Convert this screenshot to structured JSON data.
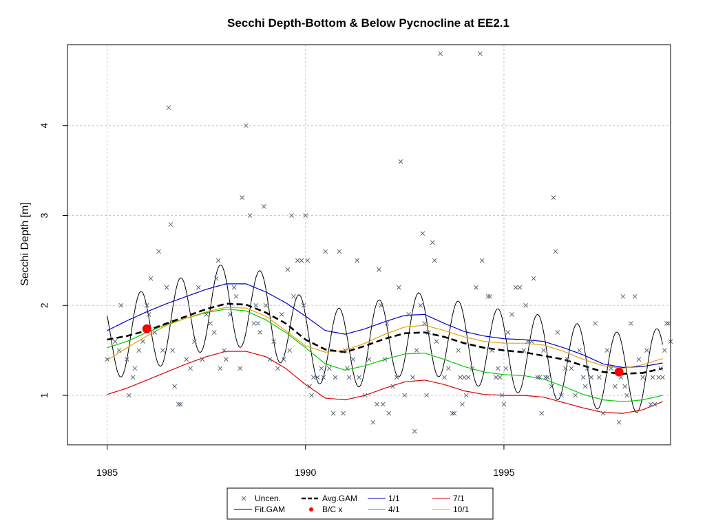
{
  "chart_data": {
    "type": "scatter",
    "title": "Secchi Depth-Bottom & Below Pycnocline at EE2.1",
    "xlabel": "",
    "ylabel": "Secchi Depth [m]",
    "xlim": [
      1984.0,
      1999.2
    ],
    "ylim": [
      0.45,
      4.9
    ],
    "x_ticks": [
      1985,
      1990,
      1995
    ],
    "y_ticks": [
      1,
      2,
      3,
      4
    ],
    "grid": true,
    "legend_position": "bottom",
    "legend": [
      {
        "label": "Uncen.",
        "symbol": "x",
        "color": "#556677"
      },
      {
        "label": "Fit.GAM",
        "symbol": "line",
        "color": "#000000"
      },
      {
        "label": "Avg.GAM",
        "symbol": "dashed",
        "color": "#000000"
      },
      {
        "label": "B/C x",
        "symbol": "dot",
        "color": "#ff0000"
      },
      {
        "label": "1/1",
        "symbol": "line",
        "color": "#0000cc"
      },
      {
        "label": "4/1",
        "symbol": "line",
        "color": "#00cc00"
      },
      {
        "label": "7/1",
        "symbol": "line",
        "color": "#dd0000"
      },
      {
        "label": "10/1",
        "symbol": "line",
        "color": "#e8a000"
      }
    ],
    "uncensored_points": [
      [
        1985.0,
        1.4
      ],
      [
        1985.2,
        1.6
      ],
      [
        1985.3,
        1.5
      ],
      [
        1985.35,
        2.0
      ],
      [
        1985.5,
        1.4
      ],
      [
        1985.55,
        1.0
      ],
      [
        1985.65,
        1.2
      ],
      [
        1985.7,
        1.3
      ],
      [
        1985.8,
        1.5
      ],
      [
        1985.9,
        1.6
      ],
      [
        1986.0,
        2.0
      ],
      [
        1986.05,
        1.9
      ],
      [
        1986.1,
        2.3
      ],
      [
        1986.2,
        1.7
      ],
      [
        1986.3,
        2.6
      ],
      [
        1986.4,
        1.5
      ],
      [
        1986.5,
        2.2
      ],
      [
        1986.55,
        4.2
      ],
      [
        1986.6,
        2.9
      ],
      [
        1986.65,
        1.5
      ],
      [
        1986.7,
        1.1
      ],
      [
        1986.8,
        0.9
      ],
      [
        1986.85,
        0.9
      ],
      [
        1987.0,
        1.4
      ],
      [
        1987.1,
        1.3
      ],
      [
        1987.2,
        1.6
      ],
      [
        1987.3,
        2.2
      ],
      [
        1987.4,
        1.4
      ],
      [
        1987.5,
        1.9
      ],
      [
        1987.6,
        1.8
      ],
      [
        1987.7,
        1.7
      ],
      [
        1987.75,
        2.3
      ],
      [
        1987.8,
        2.5
      ],
      [
        1987.85,
        1.3
      ],
      [
        1987.95,
        1.5
      ],
      [
        1988.0,
        1.4
      ],
      [
        1988.1,
        1.9
      ],
      [
        1988.2,
        2.2
      ],
      [
        1988.25,
        2.1
      ],
      [
        1988.35,
        1.3
      ],
      [
        1988.4,
        3.2
      ],
      [
        1988.5,
        4.0
      ],
      [
        1988.6,
        3.0
      ],
      [
        1988.7,
        1.8
      ],
      [
        1988.75,
        2.0
      ],
      [
        1988.8,
        1.8
      ],
      [
        1988.85,
        1.7
      ],
      [
        1988.95,
        3.1
      ],
      [
        1989.0,
        2.0
      ],
      [
        1989.1,
        1.4
      ],
      [
        1989.2,
        1.6
      ],
      [
        1989.3,
        1.3
      ],
      [
        1989.4,
        1.9
      ],
      [
        1989.45,
        1.4
      ],
      [
        1989.55,
        2.4
      ],
      [
        1989.6,
        1.5
      ],
      [
        1989.65,
        3.0
      ],
      [
        1989.7,
        2.1
      ],
      [
        1989.8,
        2.5
      ],
      [
        1989.9,
        2.5
      ],
      [
        1989.95,
        2.0
      ],
      [
        1990.0,
        3.0
      ],
      [
        1990.05,
        2.5
      ],
      [
        1990.1,
        1.1
      ],
      [
        1990.15,
        1.0
      ],
      [
        1990.2,
        1.2
      ],
      [
        1990.3,
        1.2
      ],
      [
        1990.4,
        1.3
      ],
      [
        1990.45,
        1.2
      ],
      [
        1990.5,
        2.6
      ],
      [
        1990.6,
        1.3
      ],
      [
        1990.7,
        0.8
      ],
      [
        1990.75,
        1.2
      ],
      [
        1990.85,
        2.6
      ],
      [
        1990.95,
        0.8
      ],
      [
        1991.0,
        1.5
      ],
      [
        1991.05,
        1.3
      ],
      [
        1991.1,
        1.2
      ],
      [
        1991.2,
        1.4
      ],
      [
        1991.3,
        2.5
      ],
      [
        1991.35,
        1.2
      ],
      [
        1991.5,
        1.0
      ],
      [
        1991.6,
        1.4
      ],
      [
        1991.7,
        0.7
      ],
      [
        1991.8,
        0.9
      ],
      [
        1991.85,
        2.4
      ],
      [
        1991.9,
        2.0
      ],
      [
        1991.95,
        0.9
      ],
      [
        1992.0,
        1.4
      ],
      [
        1992.05,
        1.8
      ],
      [
        1992.1,
        0.8
      ],
      [
        1992.2,
        1.1
      ],
      [
        1992.3,
        1.2
      ],
      [
        1992.35,
        2.2
      ],
      [
        1992.4,
        3.6
      ],
      [
        1992.5,
        1.0
      ],
      [
        1992.6,
        1.9
      ],
      [
        1992.7,
        1.2
      ],
      [
        1992.75,
        0.6
      ],
      [
        1992.8,
        1.5
      ],
      [
        1992.9,
        2.0
      ],
      [
        1992.95,
        2.8
      ],
      [
        1993.0,
        1.8
      ],
      [
        1993.05,
        1.0
      ],
      [
        1993.1,
        1.7
      ],
      [
        1993.2,
        2.7
      ],
      [
        1993.25,
        2.5
      ],
      [
        1993.3,
        1.6
      ],
      [
        1993.4,
        4.8
      ],
      [
        1993.5,
        1.2
      ],
      [
        1993.6,
        1.3
      ],
      [
        1993.7,
        0.8
      ],
      [
        1993.75,
        0.8
      ],
      [
        1993.85,
        1.5
      ],
      [
        1993.9,
        1.2
      ],
      [
        1993.95,
        0.9
      ],
      [
        1994.0,
        1.2
      ],
      [
        1994.05,
        1.0
      ],
      [
        1994.1,
        1.2
      ],
      [
        1994.2,
        1.3
      ],
      [
        1994.3,
        2.2
      ],
      [
        1994.4,
        4.8
      ],
      [
        1994.45,
        2.5
      ],
      [
        1994.6,
        2.1
      ],
      [
        1994.65,
        2.1
      ],
      [
        1994.7,
        1.5
      ],
      [
        1994.8,
        1.2
      ],
      [
        1994.85,
        1.3
      ],
      [
        1994.9,
        1.2
      ],
      [
        1994.95,
        1.0
      ],
      [
        1995.0,
        0.9
      ],
      [
        1995.05,
        1.3
      ],
      [
        1995.1,
        1.7
      ],
      [
        1995.2,
        1.9
      ],
      [
        1995.3,
        2.2
      ],
      [
        1995.4,
        2.2
      ],
      [
        1995.5,
        1.5
      ],
      [
        1995.55,
        2.0
      ],
      [
        1995.6,
        1.6
      ],
      [
        1995.7,
        1.6
      ],
      [
        1995.75,
        2.3
      ],
      [
        1995.85,
        1.2
      ],
      [
        1995.9,
        1.2
      ],
      [
        1995.95,
        0.8
      ],
      [
        1996.0,
        1.5
      ],
      [
        1996.05,
        1.2
      ],
      [
        1996.1,
        1.2
      ],
      [
        1996.2,
        1.1
      ],
      [
        1996.25,
        3.2
      ],
      [
        1996.3,
        2.6
      ],
      [
        1996.35,
        1.7
      ],
      [
        1996.45,
        1.0
      ],
      [
        1996.55,
        1.3
      ],
      [
        1996.6,
        1.4
      ],
      [
        1996.7,
        1.3
      ],
      [
        1996.8,
        1.0
      ],
      [
        1996.9,
        1.5
      ],
      [
        1997.0,
        1.2
      ],
      [
        1997.05,
        1.1
      ],
      [
        1997.1,
        1.3
      ],
      [
        1997.2,
        1.2
      ],
      [
        1997.3,
        1.8
      ],
      [
        1997.4,
        1.2
      ],
      [
        1997.5,
        0.8
      ],
      [
        1997.6,
        1.5
      ],
      [
        1997.7,
        1.3
      ],
      [
        1997.8,
        1.1
      ],
      [
        1997.9,
        0.7
      ],
      [
        1997.95,
        1.2
      ],
      [
        1998.0,
        2.1
      ],
      [
        1998.05,
        1.1
      ],
      [
        1998.1,
        1.0
      ],
      [
        1998.2,
        1.8
      ],
      [
        1998.3,
        2.1
      ],
      [
        1998.4,
        1.4
      ],
      [
        1998.5,
        1.2
      ],
      [
        1998.6,
        1.5
      ],
      [
        1998.7,
        0.9
      ],
      [
        1998.75,
        1.2
      ],
      [
        1998.8,
        0.9
      ],
      [
        1998.9,
        1.2
      ],
      [
        1998.95,
        1.3
      ],
      [
        1999.0,
        1.2
      ],
      [
        1999.05,
        1.5
      ],
      [
        1999.1,
        1.8
      ],
      [
        1999.15,
        1.8
      ],
      [
        1999.2,
        1.6
      ]
    ],
    "bc_points": [
      [
        1986.0,
        1.74
      ],
      [
        1997.9,
        1.26
      ]
    ],
    "fit_gam": {
      "seasonal_amplitude": 0.45,
      "seasonal_peak_fraction": 0.85,
      "mean": [
        [
          1985.0,
          1.62
        ],
        [
          1986.0,
          1.72
        ],
        [
          1987.0,
          1.88
        ],
        [
          1988.0,
          2.02
        ],
        [
          1989.0,
          1.92
        ],
        [
          1990.0,
          1.62
        ],
        [
          1991.0,
          1.5
        ],
        [
          1992.0,
          1.63
        ],
        [
          1993.0,
          1.7
        ],
        [
          1994.0,
          1.58
        ],
        [
          1995.0,
          1.5
        ],
        [
          1996.0,
          1.44
        ],
        [
          1997.0,
          1.33
        ],
        [
          1998.0,
          1.24
        ],
        [
          1999.0,
          1.3
        ]
      ]
    },
    "avg_gam": [
      [
        1985.0,
        1.62
      ],
      [
        1985.5,
        1.66
      ],
      [
        1986.0,
        1.72
      ],
      [
        1986.5,
        1.8
      ],
      [
        1987.0,
        1.88
      ],
      [
        1987.5,
        1.96
      ],
      [
        1988.0,
        2.02
      ],
      [
        1988.5,
        2.01
      ],
      [
        1989.0,
        1.92
      ],
      [
        1989.5,
        1.8
      ],
      [
        1990.0,
        1.62
      ],
      [
        1990.5,
        1.51
      ],
      [
        1991.0,
        1.48
      ],
      [
        1991.5,
        1.55
      ],
      [
        1992.0,
        1.63
      ],
      [
        1992.5,
        1.69
      ],
      [
        1993.0,
        1.7
      ],
      [
        1993.5,
        1.65
      ],
      [
        1994.0,
        1.58
      ],
      [
        1994.5,
        1.53
      ],
      [
        1995.0,
        1.5
      ],
      [
        1995.5,
        1.48
      ],
      [
        1996.0,
        1.44
      ],
      [
        1996.5,
        1.4
      ],
      [
        1997.0,
        1.33
      ],
      [
        1997.5,
        1.26
      ],
      [
        1998.0,
        1.24
      ],
      [
        1998.5,
        1.25
      ],
      [
        1999.0,
        1.3
      ]
    ],
    "series": [
      {
        "name": "1/1",
        "color": "#0000cc",
        "points": [
          [
            1985.0,
            1.72
          ],
          [
            1985.5,
            1.83
          ],
          [
            1986.0,
            1.93
          ],
          [
            1986.5,
            2.02
          ],
          [
            1987.0,
            2.1
          ],
          [
            1987.5,
            2.18
          ],
          [
            1988.0,
            2.24
          ],
          [
            1988.5,
            2.24
          ],
          [
            1989.0,
            2.15
          ],
          [
            1989.5,
            2.03
          ],
          [
            1990.0,
            1.88
          ],
          [
            1990.5,
            1.72
          ],
          [
            1991.0,
            1.68
          ],
          [
            1991.5,
            1.74
          ],
          [
            1992.0,
            1.82
          ],
          [
            1992.5,
            1.89
          ],
          [
            1993.0,
            1.9
          ],
          [
            1993.5,
            1.8
          ],
          [
            1994.0,
            1.71
          ],
          [
            1994.5,
            1.66
          ],
          [
            1995.0,
            1.63
          ],
          [
            1995.5,
            1.62
          ],
          [
            1996.0,
            1.6
          ],
          [
            1996.5,
            1.53
          ],
          [
            1997.0,
            1.45
          ],
          [
            1997.5,
            1.35
          ],
          [
            1998.0,
            1.31
          ],
          [
            1998.5,
            1.32
          ],
          [
            1999.0,
            1.36
          ]
        ]
      },
      {
        "name": "4/1",
        "color": "#00cc00",
        "points": [
          [
            1985.0,
            1.53
          ],
          [
            1985.5,
            1.6
          ],
          [
            1986.0,
            1.7
          ],
          [
            1986.5,
            1.79
          ],
          [
            1987.0,
            1.86
          ],
          [
            1987.5,
            1.92
          ],
          [
            1988.0,
            1.96
          ],
          [
            1988.5,
            1.94
          ],
          [
            1989.0,
            1.84
          ],
          [
            1989.5,
            1.7
          ],
          [
            1990.0,
            1.53
          ],
          [
            1990.5,
            1.35
          ],
          [
            1991.0,
            1.28
          ],
          [
            1991.5,
            1.33
          ],
          [
            1992.0,
            1.4
          ],
          [
            1992.5,
            1.46
          ],
          [
            1993.0,
            1.47
          ],
          [
            1993.5,
            1.4
          ],
          [
            1994.0,
            1.32
          ],
          [
            1994.5,
            1.26
          ],
          [
            1995.0,
            1.23
          ],
          [
            1995.5,
            1.22
          ],
          [
            1996.0,
            1.18
          ],
          [
            1996.5,
            1.1
          ],
          [
            1997.0,
            1.01
          ],
          [
            1997.5,
            0.95
          ],
          [
            1998.0,
            0.93
          ],
          [
            1998.5,
            0.95
          ],
          [
            1999.0,
            1.0
          ]
        ]
      },
      {
        "name": "7/1",
        "color": "#dd0000",
        "points": [
          [
            1985.0,
            1.01
          ],
          [
            1985.5,
            1.08
          ],
          [
            1986.0,
            1.17
          ],
          [
            1986.5,
            1.26
          ],
          [
            1987.0,
            1.35
          ],
          [
            1987.5,
            1.43
          ],
          [
            1988.0,
            1.49
          ],
          [
            1988.5,
            1.49
          ],
          [
            1989.0,
            1.43
          ],
          [
            1989.5,
            1.3
          ],
          [
            1990.0,
            1.12
          ],
          [
            1990.5,
            0.97
          ],
          [
            1991.0,
            0.95
          ],
          [
            1991.5,
            1.0
          ],
          [
            1992.0,
            1.08
          ],
          [
            1992.5,
            1.15
          ],
          [
            1993.0,
            1.17
          ],
          [
            1993.5,
            1.12
          ],
          [
            1994.0,
            1.05
          ],
          [
            1994.5,
            1.01
          ],
          [
            1995.0,
            1.0
          ],
          [
            1995.5,
            1.0
          ],
          [
            1996.0,
            0.98
          ],
          [
            1996.5,
            0.92
          ],
          [
            1997.0,
            0.86
          ],
          [
            1997.5,
            0.81
          ],
          [
            1998.0,
            0.8
          ],
          [
            1998.5,
            0.84
          ],
          [
            1999.0,
            0.93
          ]
        ]
      },
      {
        "name": "10/1",
        "color": "#e8a000",
        "points": [
          [
            1985.0,
            1.39
          ],
          [
            1985.5,
            1.53
          ],
          [
            1986.0,
            1.66
          ],
          [
            1986.5,
            1.78
          ],
          [
            1987.0,
            1.86
          ],
          [
            1987.5,
            1.93
          ],
          [
            1988.0,
            1.98
          ],
          [
            1988.5,
            1.97
          ],
          [
            1989.0,
            1.88
          ],
          [
            1989.5,
            1.72
          ],
          [
            1990.0,
            1.55
          ],
          [
            1990.5,
            1.48
          ],
          [
            1991.0,
            1.5
          ],
          [
            1991.5,
            1.58
          ],
          [
            1992.0,
            1.68
          ],
          [
            1992.5,
            1.76
          ],
          [
            1993.0,
            1.78
          ],
          [
            1993.5,
            1.72
          ],
          [
            1994.0,
            1.65
          ],
          [
            1994.5,
            1.6
          ],
          [
            1995.0,
            1.58
          ],
          [
            1995.5,
            1.58
          ],
          [
            1996.0,
            1.56
          ],
          [
            1996.5,
            1.49
          ],
          [
            1997.0,
            1.4
          ],
          [
            1997.5,
            1.33
          ],
          [
            1998.0,
            1.3
          ],
          [
            1998.5,
            1.34
          ],
          [
            1999.0,
            1.41
          ]
        ]
      }
    ]
  }
}
